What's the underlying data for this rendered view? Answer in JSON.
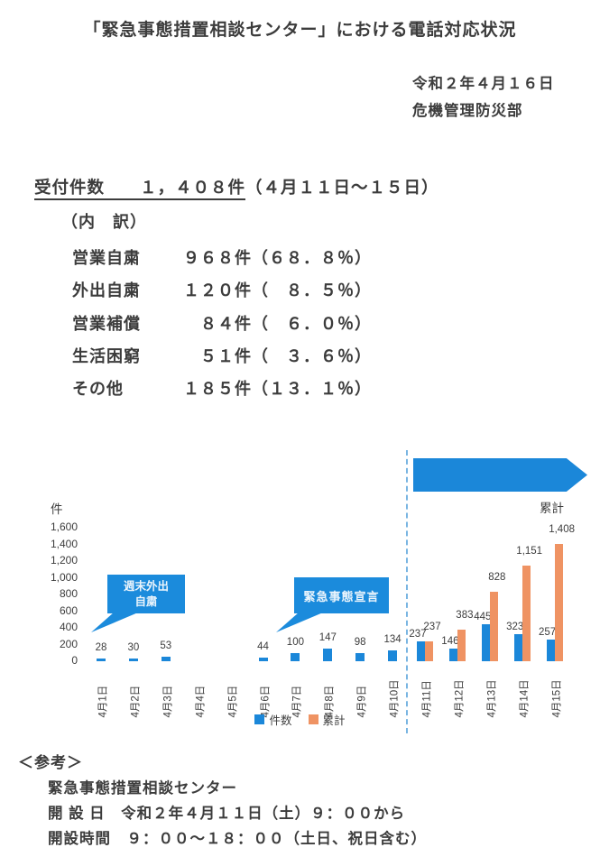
{
  "page": {
    "title": "「緊急事態措置相談センター」における電話対応状況",
    "date": "令和２年４月１６日",
    "department": "危機管理防災部"
  },
  "summary": {
    "headline_underlined": "受付件数　　１，４０８件",
    "headline_period": "（４月１１日～１５日）",
    "breakdown_title": "（内　訳）",
    "rows": [
      {
        "label": "営業自粛",
        "value": "９６８件（６８．８％）"
      },
      {
        "label": "外出自粛",
        "value": "１２０件（　８．５％）"
      },
      {
        "label": "営業補償",
        "value": "　８４件（　６．０％）"
      },
      {
        "label": "生活困窮",
        "value": "　５１件（　３．６％）"
      },
      {
        "label": "その他",
        "value": "１８５件（１３．１％）"
      }
    ]
  },
  "chart_data": {
    "type": "bar",
    "title": "",
    "unit_label": "件",
    "categories": [
      "4月1日",
      "4月2日",
      "4月3日",
      "4月4日",
      "4月5日",
      "4月6日",
      "4月7日",
      "4月8日",
      "4月9日",
      "4月10日",
      "4月11日",
      "4月12日",
      "4月13日",
      "4月14日",
      "4月15日"
    ],
    "series": [
      {
        "name": "件数",
        "color": "#1b87d9",
        "values": [
          28,
          30,
          53,
          null,
          null,
          44,
          100,
          147,
          98,
          134,
          237,
          146,
          445,
          323,
          257
        ]
      },
      {
        "name": "累計",
        "color": "#ef9363",
        "values": [
          null,
          null,
          null,
          null,
          null,
          null,
          null,
          null,
          null,
          null,
          237,
          383,
          828,
          1151,
          1408
        ]
      }
    ],
    "ylim": [
      0,
      1600
    ],
    "y_ticks": [
      "1,600",
      "1,400",
      "1,200",
      "1,000",
      "800",
      "600",
      "400",
      "200",
      "0"
    ],
    "grid": false,
    "legend": [
      "件数",
      "累計"
    ],
    "legend_position": "bottom",
    "divider_after_category": "4月10日",
    "arrow_label": "累計",
    "annotations": [
      {
        "text": "週末外出\n自粛"
      },
      {
        "text": "緊急事態宣言"
      }
    ]
  },
  "reference": {
    "heading": "＜参考＞",
    "lines": [
      "緊急事態措置相談センター",
      "開 設 日　令和２年４月１１日（土）９：００から",
      "開設時間　９：００～１８：００（土日、祝日含む）"
    ]
  },
  "colors": {
    "bar_blue": "#1b87d9",
    "bar_orange": "#ef9363",
    "callout_blue": "#1b8bdc",
    "dashed_divider": "#79b5e2",
    "text": "#3c3c3c"
  }
}
